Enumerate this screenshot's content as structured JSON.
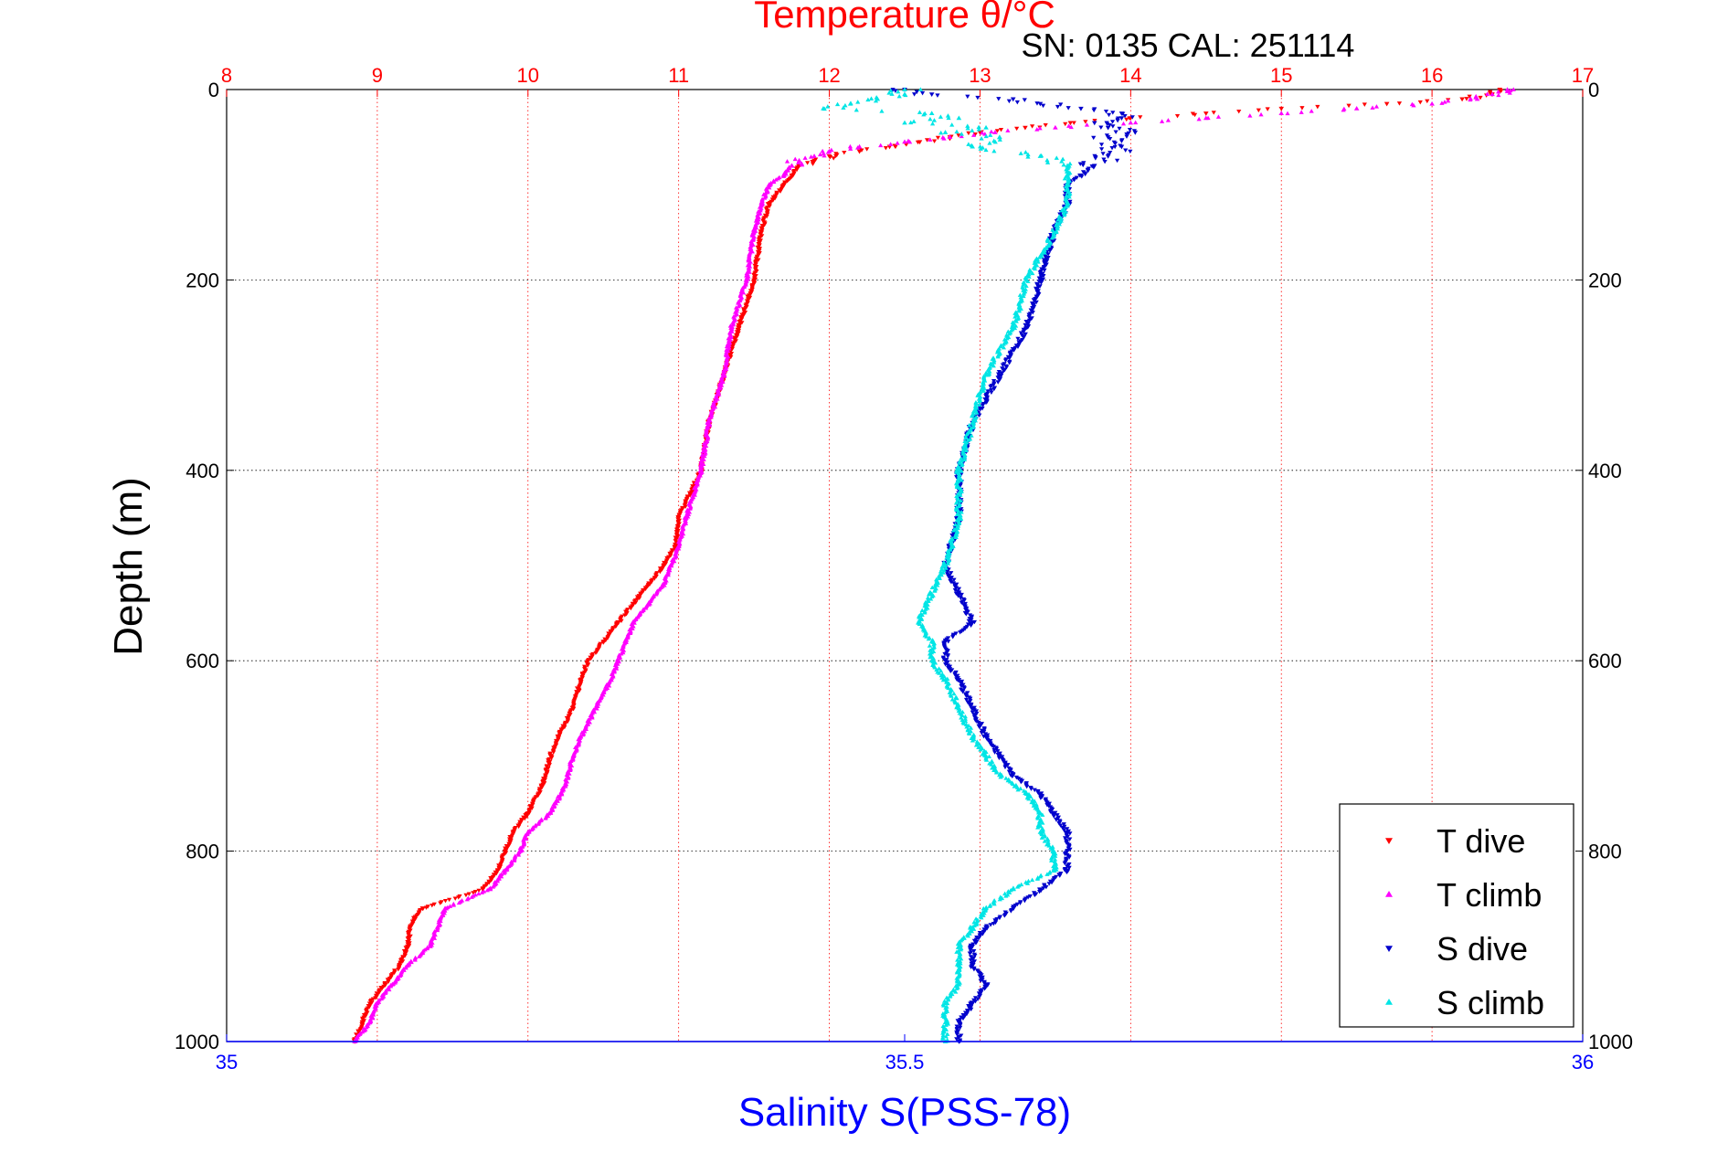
{
  "chart_data": {
    "type": "scatter",
    "title": "Temperature θ/°C",
    "subtitle": "SN: 0135  CAL: 251114",
    "ylabel": "Depth (m)",
    "xlabel_top": "Temperature θ/°C",
    "xlabel_bottom": "Salinity S(PSS-78)",
    "ylim": [
      1000,
      0
    ],
    "temp_xlim": [
      8,
      17
    ],
    "sal_xlim": [
      35,
      36
    ],
    "temp_ticks": [
      8,
      9,
      10,
      11,
      12,
      13,
      14,
      15,
      16,
      17
    ],
    "sal_ticks": [
      "35",
      "35.5",
      "36"
    ],
    "sal_tick_values": [
      35,
      35.5,
      36
    ],
    "depth_ticks": [
      0,
      200,
      400,
      600,
      800,
      1000
    ],
    "grid": true,
    "legend_position": "bottom-right",
    "colors": {
      "t_dive": "#ff0000",
      "t_climb": "#ff00ff",
      "s_dive": "#0000cc",
      "s_climb": "#00e5e5",
      "temp_axis": "#ff0000",
      "sal_axis": "#0000ff"
    },
    "series": [
      {
        "name": "T dive",
        "axis": "temperature",
        "marker": "triangle-down",
        "color": "#ff0000",
        "depth": [
          0,
          2,
          5,
          10,
          15,
          20,
          25,
          30,
          35,
          40,
          45,
          50,
          55,
          60,
          65,
          70,
          75,
          80,
          90,
          100,
          120,
          150,
          200,
          250,
          300,
          350,
          400,
          450,
          480,
          500,
          520,
          540,
          560,
          580,
          600,
          620,
          650,
          680,
          700,
          730,
          760,
          780,
          800,
          820,
          840,
          860,
          870,
          880,
          900,
          920,
          940,
          960,
          980,
          1000
        ],
        "values": [
          16.45,
          16.45,
          16.4,
          16.2,
          15.7,
          15.0,
          14.5,
          14.0,
          13.6,
          13.3,
          13.0,
          12.8,
          12.6,
          12.4,
          12.2,
          12.0,
          11.9,
          11.8,
          11.75,
          11.7,
          11.6,
          11.55,
          11.5,
          11.4,
          11.3,
          11.2,
          11.15,
          11.0,
          10.98,
          10.9,
          10.8,
          10.7,
          10.6,
          10.5,
          10.4,
          10.35,
          10.3,
          10.2,
          10.15,
          10.1,
          10.0,
          9.9,
          9.85,
          9.8,
          9.7,
          9.3,
          9.25,
          9.22,
          9.2,
          9.15,
          9.05,
          8.95,
          8.9,
          8.85
        ]
      },
      {
        "name": "T climb",
        "axis": "temperature",
        "marker": "triangle-up",
        "color": "#ff00ff",
        "depth": [
          0,
          2,
          5,
          10,
          15,
          20,
          25,
          30,
          35,
          40,
          45,
          50,
          55,
          60,
          65,
          70,
          75,
          80,
          90,
          100,
          120,
          150,
          200,
          250,
          300,
          350,
          400,
          450,
          480,
          500,
          520,
          540,
          560,
          580,
          600,
          620,
          650,
          680,
          700,
          730,
          760,
          780,
          800,
          820,
          840,
          860,
          880,
          900,
          920,
          940,
          960,
          980,
          1000
        ],
        "values": [
          16.5,
          16.5,
          16.4,
          16.3,
          16.0,
          15.5,
          15.0,
          14.5,
          14.0,
          13.5,
          13.1,
          12.8,
          12.5,
          12.2,
          12.0,
          11.9,
          11.8,
          11.75,
          11.7,
          11.6,
          11.55,
          11.5,
          11.45,
          11.35,
          11.3,
          11.2,
          11.15,
          11.05,
          11.0,
          10.95,
          10.9,
          10.8,
          10.7,
          10.65,
          10.6,
          10.55,
          10.45,
          10.35,
          10.3,
          10.25,
          10.15,
          10.0,
          9.95,
          9.85,
          9.75,
          9.45,
          9.4,
          9.35,
          9.2,
          9.1,
          9.0,
          8.95,
          8.85
        ]
      },
      {
        "name": "S dive",
        "axis": "salinity",
        "marker": "triangle-down",
        "color": "#0000cc",
        "depth": [
          0,
          5,
          10,
          15,
          20,
          25,
          30,
          35,
          40,
          45,
          50,
          60,
          70,
          80,
          90,
          100,
          120,
          150,
          200,
          250,
          300,
          350,
          400,
          450,
          500,
          530,
          560,
          580,
          600,
          620,
          650,
          680,
          700,
          720,
          740,
          760,
          780,
          800,
          820,
          840,
          860,
          880,
          900,
          920,
          940,
          960,
          980,
          1000
        ],
        "values": [
          35.5,
          35.52,
          35.58,
          35.6,
          35.63,
          35.66,
          35.66,
          35.64,
          35.65,
          35.67,
          35.65,
          35.66,
          35.65,
          35.64,
          35.63,
          35.62,
          35.62,
          35.61,
          35.6,
          35.59,
          35.57,
          35.55,
          35.54,
          35.54,
          35.53,
          35.54,
          35.55,
          35.53,
          35.53,
          35.54,
          35.55,
          35.56,
          35.57,
          35.58,
          35.6,
          35.61,
          35.62,
          35.62,
          35.62,
          35.6,
          35.58,
          35.56,
          35.55,
          35.55,
          35.56,
          35.55,
          35.54,
          35.54
        ]
      },
      {
        "name": "S climb",
        "axis": "salinity",
        "marker": "triangle-up",
        "color": "#00e5e5",
        "depth": [
          0,
          5,
          10,
          15,
          20,
          25,
          30,
          35,
          40,
          45,
          50,
          60,
          70,
          80,
          90,
          100,
          120,
          150,
          200,
          250,
          300,
          350,
          400,
          450,
          500,
          530,
          560,
          580,
          600,
          620,
          650,
          680,
          700,
          720,
          740,
          760,
          780,
          800,
          820,
          840,
          860,
          880,
          900,
          920,
          940,
          960,
          980,
          1000
        ],
        "values": [
          35.5,
          35.5,
          35.48,
          35.46,
          35.44,
          35.52,
          35.54,
          35.5,
          35.56,
          35.53,
          35.57,
          35.55,
          35.6,
          35.62,
          35.62,
          35.62,
          35.62,
          35.61,
          35.59,
          35.58,
          35.56,
          35.55,
          35.54,
          35.54,
          35.53,
          35.52,
          35.51,
          35.52,
          35.52,
          35.53,
          35.54,
          35.55,
          35.56,
          35.57,
          35.59,
          35.6,
          35.6,
          35.61,
          35.61,
          35.58,
          35.56,
          35.55,
          35.54,
          35.54,
          35.54,
          35.53,
          35.53,
          35.53
        ]
      }
    ]
  }
}
